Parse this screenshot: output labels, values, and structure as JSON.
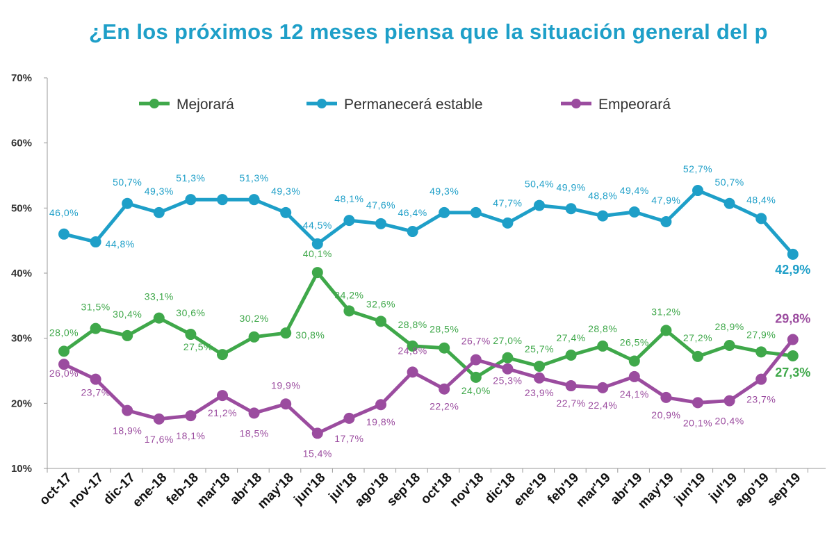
{
  "chart_data": {
    "type": "line",
    "title": "¿En los próximos 12 meses piensa que la situación general del p",
    "xlabel": "",
    "ylabel": "",
    "ylim": [
      10,
      70
    ],
    "yticks": [
      "10%",
      "20%",
      "30%",
      "40%",
      "50%",
      "60%",
      "70%"
    ],
    "grid": false,
    "legend_position": "top",
    "categories": [
      "oct-17",
      "nov-17",
      "dic-17",
      "ene-18",
      "feb-18",
      "mar'18",
      "abr'18",
      "may'18",
      "jun'18",
      "jul'18",
      "ago'18",
      "sep'18",
      "oct'18",
      "nov'18",
      "dic'18",
      "ene'19",
      "feb'19",
      "mar'19",
      "abr'19",
      "may'19",
      "jun'19",
      "jul'19",
      "ago'19",
      "sep'19"
    ],
    "series": [
      {
        "name": "Mejorará",
        "color": "#3fa84a",
        "values": [
          28.0,
          31.5,
          30.4,
          33.1,
          30.6,
          27.5,
          30.2,
          30.8,
          40.1,
          34.2,
          32.6,
          28.8,
          28.5,
          24.0,
          27.0,
          25.7,
          27.4,
          28.8,
          26.5,
          31.2,
          27.2,
          28.9,
          27.9,
          27.3
        ],
        "labels": [
          "28,0%",
          "31,5%",
          "30,4%",
          "33,1%",
          "30,6%",
          "27,5%",
          "30,2%",
          "30,8%",
          "40,1%",
          "34,2%",
          "32,6%",
          "28,8%",
          "28,5%",
          "24,0%",
          "27,0%",
          "25,7%",
          "27,4%",
          "28,8%",
          "26,5%",
          "31,2%",
          "27,2%",
          "28,9%",
          "27,9%",
          "27,3%"
        ]
      },
      {
        "name": "Permanecerá estable",
        "color": "#1e9fc8",
        "values": [
          46.0,
          44.8,
          50.7,
          49.3,
          51.3,
          51.3,
          51.3,
          49.3,
          44.5,
          48.1,
          47.6,
          46.4,
          49.3,
          49.3,
          47.7,
          50.4,
          49.9,
          48.8,
          49.4,
          47.9,
          52.7,
          50.7,
          48.4,
          42.9
        ],
        "labels": [
          "46,0%",
          "44,8%",
          "50,7%",
          "49,3%",
          "51,3%",
          "",
          "51,3%",
          "49,3%",
          "44,5%",
          "48,1%",
          "47,6%",
          "46,4%",
          "49,3%",
          "",
          "47,7%",
          "50,4%",
          "49,9%",
          "48,8%",
          "49,4%",
          "47,9%",
          "52,7%",
          "50,7%",
          "48,4%",
          "42,9%"
        ]
      },
      {
        "name": "Empeorará",
        "color": "#9b4c9f",
        "values": [
          26.0,
          23.7,
          18.9,
          17.6,
          18.1,
          21.2,
          18.5,
          19.9,
          15.4,
          17.7,
          19.8,
          24.8,
          22.2,
          26.7,
          25.3,
          23.9,
          22.7,
          22.4,
          24.1,
          20.9,
          20.1,
          20.4,
          23.7,
          29.8
        ],
        "labels": [
          "26,0%",
          "23,7%",
          "18,9%",
          "17,6%",
          "18,1%",
          "21,2%",
          "18,5%",
          "19,9%",
          "15,4%",
          "17,7%",
          "19,8%",
          "24,8%",
          "22,2%",
          "26,7%",
          "25,3%",
          "23,9%",
          "22,7%",
          "22,4%",
          "24,1%",
          "20,9%",
          "20,1%",
          "20,4%",
          "23,7%",
          "29,8%"
        ]
      }
    ]
  }
}
